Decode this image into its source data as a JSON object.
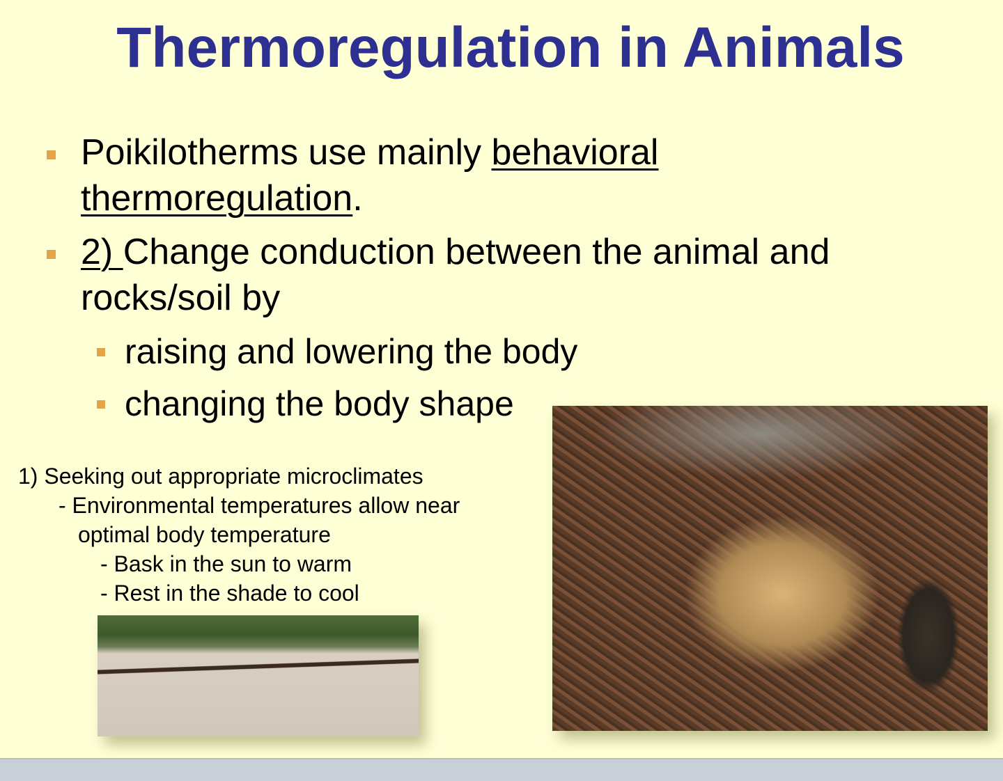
{
  "slide": {
    "title": "Thermoregulation in Animals",
    "bullets": [
      {
        "pre": "Poikilotherms use mainly ",
        "underline1": "behavioral",
        "underline2": "thermoregulation",
        "post": "."
      },
      {
        "underline": "2) ",
        "line1": "Change conduction between the animal and",
        "line2": "rocks/soil by"
      }
    ],
    "subbullets": [
      "raising and lowering the body",
      "changing the body shape"
    ],
    "notes": [
      "1) Seeking out appropriate microclimates",
      "- Environmental temperatures allow near",
      "optimal body temperature",
      "- Bask in the sun to warm",
      "- Rest in the shade to cool"
    ],
    "images": [
      "coiled-rattlesnake-photo",
      "snake-on-road-photo"
    ],
    "colors": {
      "title": "#2D3091",
      "background": "#FFFFD6",
      "bullet": "#E3A44A"
    }
  }
}
